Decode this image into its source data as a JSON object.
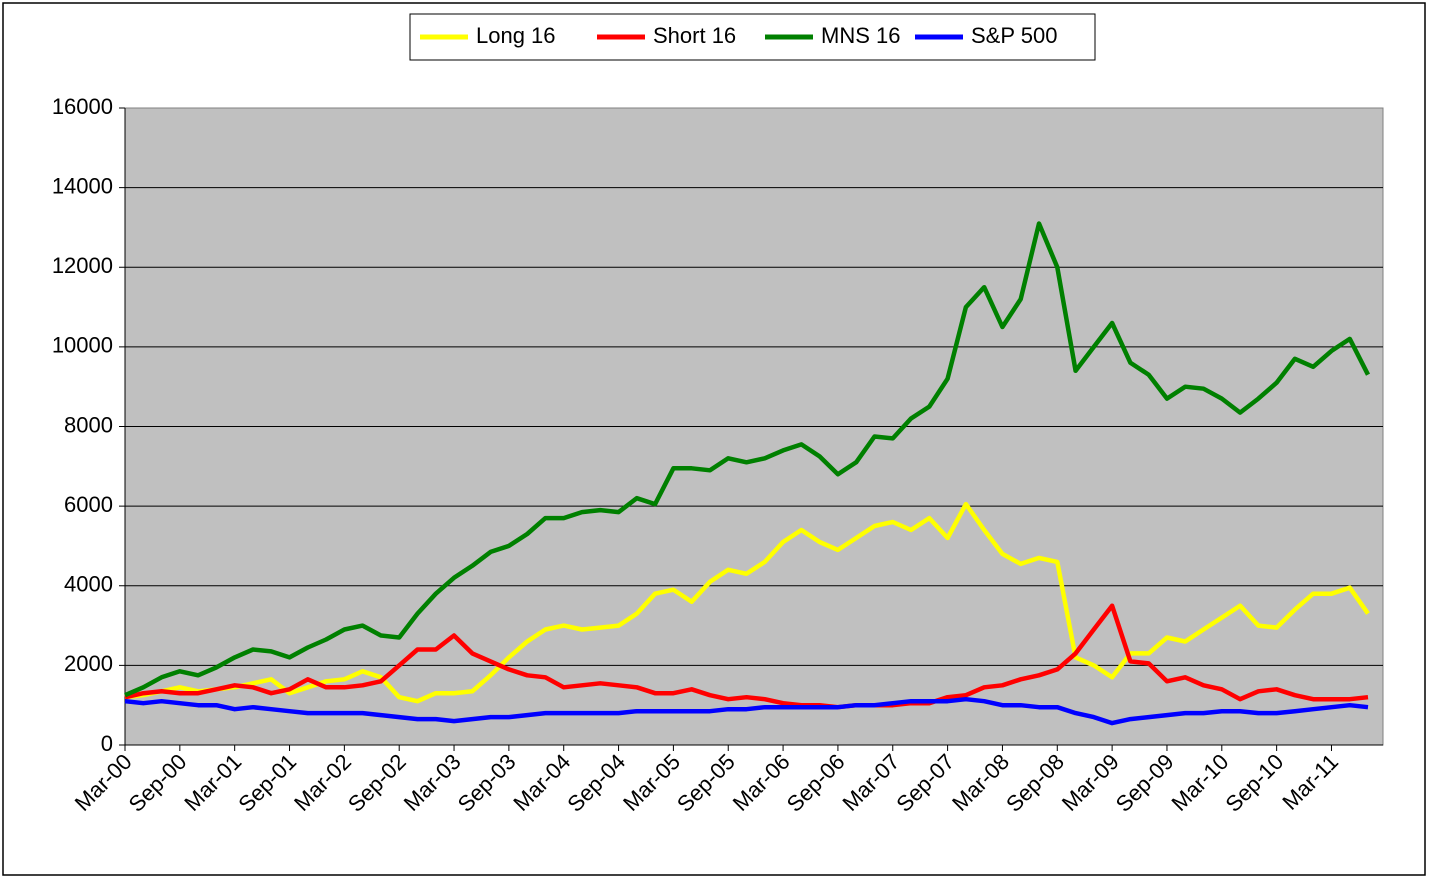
{
  "chart_data": {
    "type": "line",
    "categories": [
      "Mar-00",
      null,
      null,
      "Sep-00",
      null,
      null,
      "Mar-01",
      null,
      null,
      "Sep-01",
      null,
      null,
      "Mar-02",
      null,
      null,
      "Sep-02",
      null,
      null,
      "Mar-03",
      null,
      null,
      "Sep-03",
      null,
      null,
      "Mar-04",
      null,
      null,
      "Sep-04",
      null,
      null,
      "Mar-05",
      null,
      null,
      "Sep-05",
      null,
      null,
      "Mar-06",
      null,
      null,
      "Sep-06",
      null,
      null,
      "Mar-07",
      null,
      null,
      "Sep-07",
      null,
      null,
      "Mar-08",
      null,
      null,
      "Sep-08",
      null,
      null,
      "Mar-09",
      null,
      null,
      "Sep-09",
      null,
      null,
      "Mar-10",
      null,
      null,
      "Sep-10",
      null,
      null,
      "Mar-11",
      null,
      null
    ],
    "series": [
      {
        "name": "Long 16",
        "color": "#ffff00",
        "values": [
          1200,
          1250,
          1350,
          1450,
          1350,
          1400,
          1450,
          1550,
          1650,
          1300,
          1450,
          1600,
          1650,
          1850,
          1700,
          1200,
          1100,
          1300,
          1300,
          1350,
          1750,
          2200,
          2600,
          2900,
          3000,
          2900,
          2950,
          3000,
          3300,
          3800,
          3900,
          3600,
          4100,
          4400,
          4300,
          4600,
          5100,
          5400,
          5100,
          4900,
          5200,
          5500,
          5600,
          5400,
          5700,
          5200,
          6050,
          5400,
          4800,
          4550,
          4700,
          4600,
          2200,
          2000,
          1700,
          2300,
          2300,
          2700,
          2600,
          2900,
          3200,
          3500,
          3000,
          2950,
          3400,
          3800,
          3800,
          3950,
          3300
        ]
      },
      {
        "name": "Short 16",
        "color": "#ff0000",
        "values": [
          1200,
          1300,
          1350,
          1300,
          1300,
          1400,
          1500,
          1450,
          1300,
          1400,
          1650,
          1450,
          1450,
          1500,
          1600,
          2000,
          2400,
          2400,
          2750,
          2300,
          2100,
          1900,
          1750,
          1700,
          1450,
          1500,
          1550,
          1500,
          1450,
          1300,
          1300,
          1400,
          1250,
          1150,
          1200,
          1150,
          1050,
          1000,
          1000,
          950,
          1000,
          1000,
          1000,
          1050,
          1050,
          1200,
          1250,
          1450,
          1500,
          1650,
          1750,
          1900,
          2300,
          2900,
          3500,
          2100,
          2050,
          1600,
          1700,
          1500,
          1400,
          1150,
          1350,
          1400,
          1250,
          1150,
          1150,
          1150,
          1200
        ]
      },
      {
        "name": "MNS 16",
        "color": "#008000",
        "values": [
          1250,
          1450,
          1700,
          1850,
          1750,
          1950,
          2200,
          2400,
          2350,
          2200,
          2450,
          2650,
          2900,
          3000,
          2750,
          2700,
          3300,
          3800,
          4200,
          4500,
          4850,
          5000,
          5300,
          5700,
          5700,
          5850,
          5900,
          5850,
          6200,
          6050,
          6950,
          6950,
          6900,
          7200,
          7100,
          7200,
          7400,
          7550,
          7250,
          6800,
          7100,
          7750,
          7700,
          8200,
          8500,
          9200,
          11000,
          11500,
          10500,
          11200,
          13100,
          12000,
          9400,
          10000,
          10600,
          9600,
          9300,
          8700,
          9000,
          8950,
          8700,
          8350,
          8700,
          9100,
          9700,
          9500,
          9900,
          10200,
          9300
        ]
      },
      {
        "name": "S&P 500",
        "color": "#0000ff",
        "values": [
          1100,
          1050,
          1100,
          1050,
          1000,
          1000,
          900,
          950,
          900,
          850,
          800,
          800,
          800,
          800,
          750,
          700,
          650,
          650,
          600,
          650,
          700,
          700,
          750,
          800,
          800,
          800,
          800,
          800,
          850,
          850,
          850,
          850,
          850,
          900,
          900,
          950,
          950,
          950,
          950,
          950,
          1000,
          1000,
          1050,
          1100,
          1100,
          1100,
          1150,
          1100,
          1000,
          1000,
          950,
          950,
          800,
          700,
          550,
          650,
          700,
          750,
          800,
          800,
          850,
          850,
          800,
          800,
          850,
          900,
          950,
          1000,
          950
        ]
      }
    ],
    "ylim": [
      0,
      16000
    ],
    "yticks": [
      0,
      2000,
      4000,
      6000,
      8000,
      10000,
      12000,
      14000,
      16000
    ],
    "grid": true,
    "legend": "top"
  }
}
